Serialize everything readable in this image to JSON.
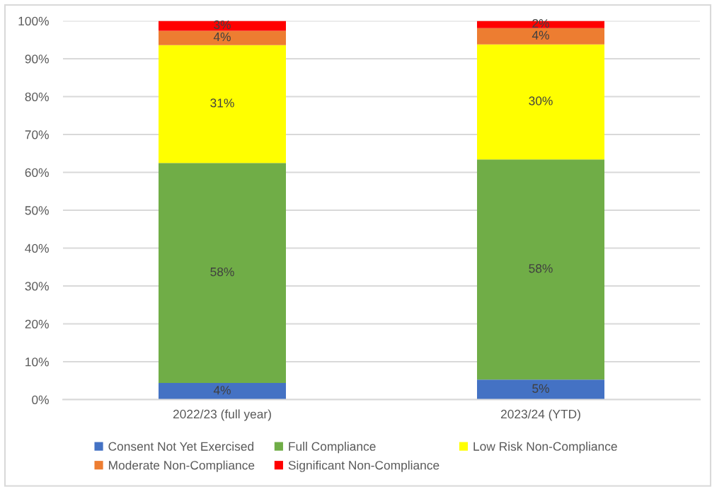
{
  "chart_data": {
    "type": "bar",
    "stacked": true,
    "categories": [
      "2022/23 (full year)",
      "2023/24 (YTD)"
    ],
    "series": [
      {
        "name": "Consent Not Yet Exercised",
        "color": "#4472c4",
        "values": [
          4.4,
          5.3
        ],
        "value_labels": [
          "4%",
          "5%"
        ]
      },
      {
        "name": "Full Compliance",
        "color": "#70ad47",
        "values": [
          58.1,
          58.1
        ],
        "value_labels": [
          "58%",
          "58%"
        ]
      },
      {
        "name": "Low Risk Non-Compliance",
        "color": "#ffff00",
        "values": [
          31.1,
          30.4
        ],
        "value_labels": [
          "31%",
          "30%"
        ]
      },
      {
        "name": "Moderate Non-Compliance",
        "color": "#ed7d31",
        "values": [
          3.8,
          4.3
        ],
        "value_labels": [
          "4%",
          "4%"
        ]
      },
      {
        "name": "Significant Non-Compliance",
        "color": "#ff0000",
        "values": [
          2.6,
          1.9
        ],
        "value_labels": [
          "3%",
          "2%"
        ]
      }
    ],
    "ylim": [
      0,
      100
    ],
    "yticks": [
      {
        "value": 0,
        "label": "0%"
      },
      {
        "value": 10,
        "label": "10%"
      },
      {
        "value": 20,
        "label": "20%"
      },
      {
        "value": 30,
        "label": "30%"
      },
      {
        "value": 40,
        "label": "40%"
      },
      {
        "value": 50,
        "label": "50%"
      },
      {
        "value": 60,
        "label": "60%"
      },
      {
        "value": 70,
        "label": "70%"
      },
      {
        "value": 80,
        "label": "80%"
      },
      {
        "value": 90,
        "label": "90%"
      },
      {
        "value": 100,
        "label": "100%"
      }
    ],
    "grid": "y",
    "legend": "bottom"
  }
}
